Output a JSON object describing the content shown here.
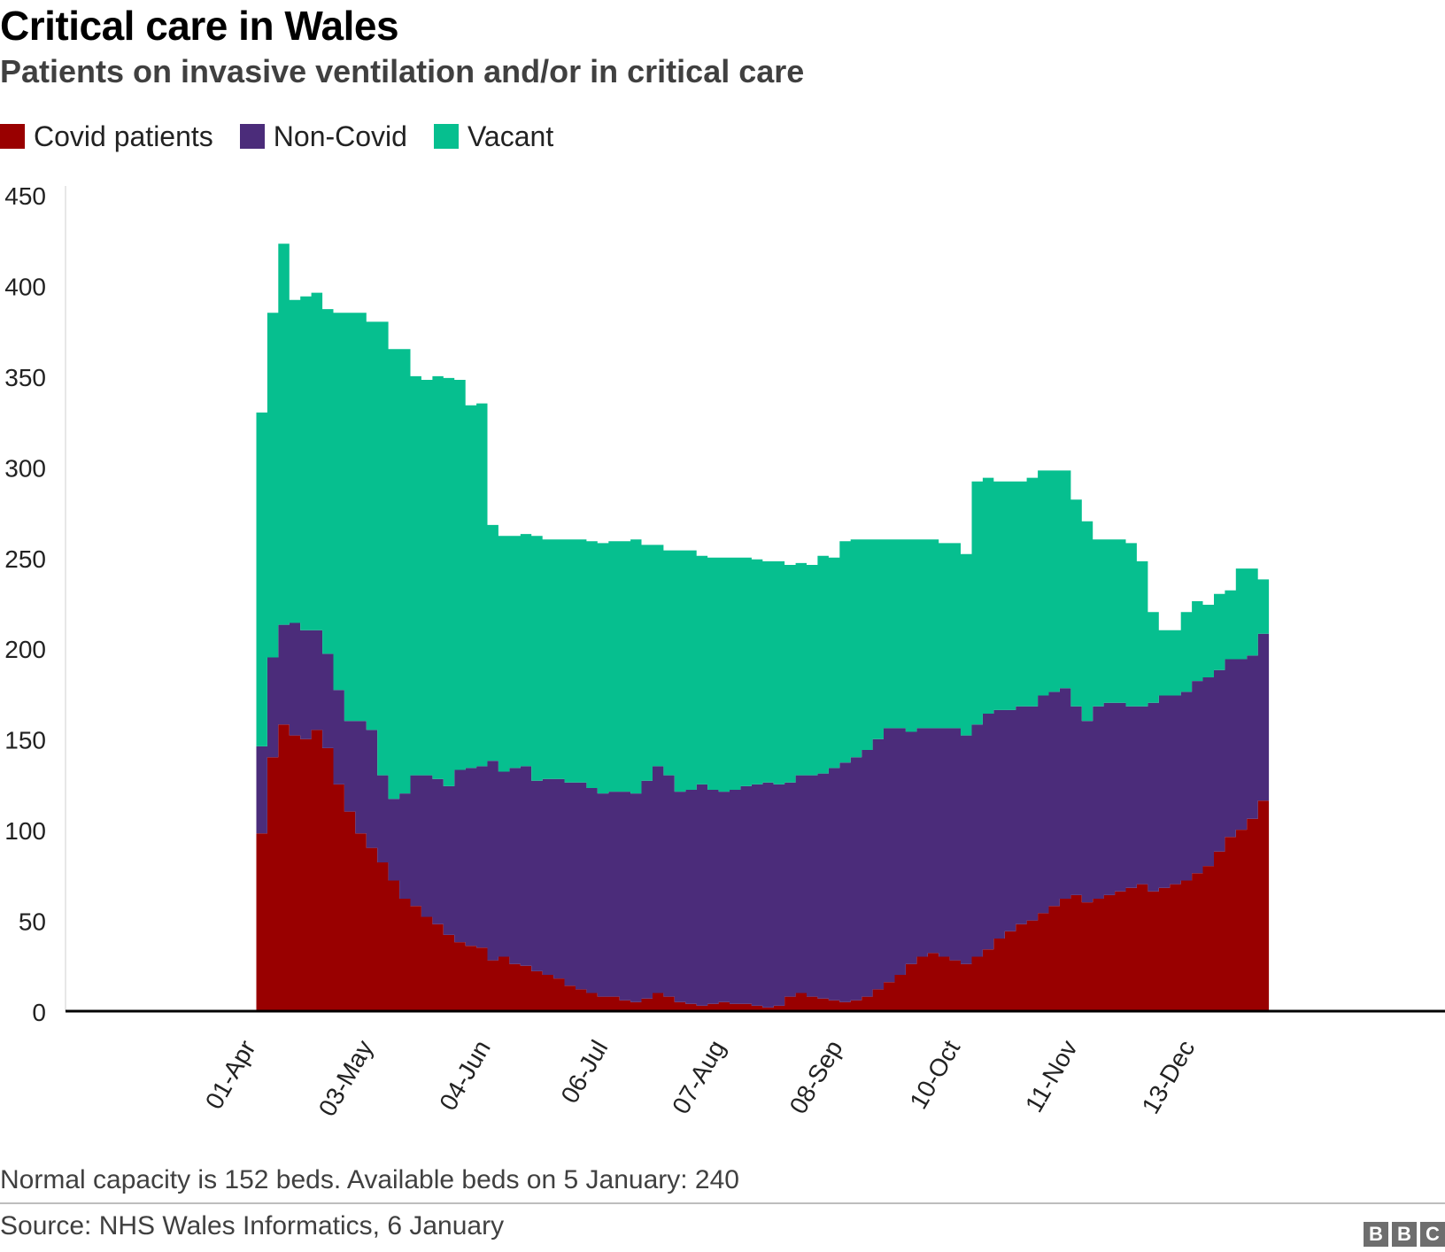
{
  "header": {
    "title": "Critical care in Wales",
    "subtitle": "Patients on invasive ventilation and/or in critical care"
  },
  "legend": [
    {
      "label": "Covid patients",
      "color": "#990000"
    },
    {
      "label": "Non-Covid",
      "color": "#4b2c7a"
    },
    {
      "label": "Vacant",
      "color": "#06bf8f"
    }
  ],
  "footer": {
    "note": "Normal capacity is 152 beds. Available beds on 5 January: 240",
    "source": "Source: NHS Wales Informatics, 6 January",
    "logo_letters": [
      "B",
      "B",
      "C"
    ]
  },
  "chart_data": {
    "type": "area",
    "stacked": true,
    "ylim": [
      0,
      450
    ],
    "y_ticks": [
      "0",
      "50",
      "100",
      "150",
      "200",
      "250",
      "300",
      "350",
      "400",
      "450"
    ],
    "x_ticks": [
      "01-Apr",
      "03-May",
      "04-Jun",
      "06-Jul",
      "07-Aug",
      "08-Sep",
      "10-Oct",
      "11-Nov",
      "13-Dec"
    ],
    "x_tick_day_index": [
      0,
      32,
      64,
      96,
      128,
      160,
      192,
      224,
      256
    ],
    "x_range_days": [
      -52,
      324
    ],
    "x_start": "01-Apr",
    "grid": false,
    "legend_position": "top-left",
    "x_days": [
      0,
      3,
      6,
      9,
      12,
      15,
      18,
      21,
      24,
      27,
      30,
      33,
      36,
      39,
      42,
      45,
      48,
      51,
      54,
      57,
      60,
      63,
      66,
      69,
      72,
      75,
      78,
      81,
      84,
      87,
      90,
      93,
      96,
      99,
      102,
      105,
      108,
      111,
      114,
      117,
      120,
      123,
      126,
      129,
      132,
      135,
      138,
      141,
      144,
      147,
      150,
      153,
      156,
      159,
      162,
      165,
      168,
      171,
      174,
      177,
      180,
      183,
      186,
      189,
      192,
      195,
      198,
      201,
      204,
      207,
      210,
      213,
      216,
      219,
      222,
      225,
      228,
      231,
      234,
      237,
      240,
      243,
      246,
      249,
      252,
      255,
      258,
      261,
      264,
      267,
      270,
      273
    ],
    "series": [
      {
        "name": "Covid patients",
        "color": "#990000",
        "values": [
          98,
          140,
          158,
          152,
          150,
          155,
          145,
          125,
          110,
          98,
          90,
          82,
          72,
          62,
          58,
          52,
          48,
          42,
          38,
          36,
          35,
          28,
          30,
          26,
          25,
          22,
          20,
          18,
          14,
          12,
          10,
          8,
          8,
          6,
          5,
          7,
          10,
          8,
          5,
          4,
          3,
          4,
          5,
          4,
          4,
          3,
          2,
          3,
          8,
          10,
          8,
          7,
          6,
          5,
          6,
          8,
          12,
          16,
          20,
          26,
          30,
          32,
          30,
          28,
          26,
          30,
          34,
          40,
          44,
          48,
          50,
          54,
          58,
          62,
          64,
          60,
          62,
          64,
          66,
          68,
          70,
          66,
          68,
          70,
          72,
          76,
          80,
          88,
          96,
          100,
          106,
          116
        ]
      },
      {
        "name": "Non-Covid",
        "values": [
          48,
          55,
          55,
          62,
          60,
          55,
          52,
          52,
          50,
          62,
          65,
          48,
          45,
          58,
          72,
          78,
          80,
          82,
          95,
          98,
          100,
          110,
          102,
          108,
          110,
          105,
          108,
          110,
          112,
          114,
          113,
          112,
          113,
          115,
          115,
          120,
          125,
          122,
          116,
          118,
          122,
          118,
          116,
          118,
          120,
          122,
          124,
          122,
          118,
          120,
          122,
          124,
          128,
          132,
          134,
          136,
          138,
          140,
          136,
          128,
          126,
          124,
          126,
          128,
          126,
          128,
          130,
          126,
          122,
          120,
          118,
          120,
          118,
          116,
          104,
          100,
          106,
          106,
          104,
          100,
          98,
          104,
          106,
          104,
          104,
          106,
          104,
          100,
          98,
          94,
          90,
          92
        ]
      },
      {
        "name": "Vacant",
        "values": [
          184,
          190,
          210,
          178,
          184,
          186,
          190,
          208,
          225,
          225,
          225,
          250,
          248,
          245,
          220,
          218,
          222,
          225,
          215,
          200,
          200,
          130,
          130,
          128,
          128,
          135,
          132,
          132,
          134,
          134,
          136,
          138,
          138,
          138,
          140,
          130,
          122,
          124,
          133,
          132,
          126,
          128,
          129,
          128,
          126,
          124,
          122,
          123,
          120,
          117,
          116,
          120,
          116,
          122,
          120,
          116,
          110,
          104,
          104,
          106,
          104,
          104,
          102,
          102,
          100,
          134,
          130,
          126,
          126,
          124,
          126,
          124,
          122,
          120,
          114,
          110,
          92,
          90,
          90,
          90,
          80,
          50,
          36,
          36,
          44,
          44,
          40,
          42,
          38,
          50,
          48,
          30
        ]
      }
    ]
  }
}
